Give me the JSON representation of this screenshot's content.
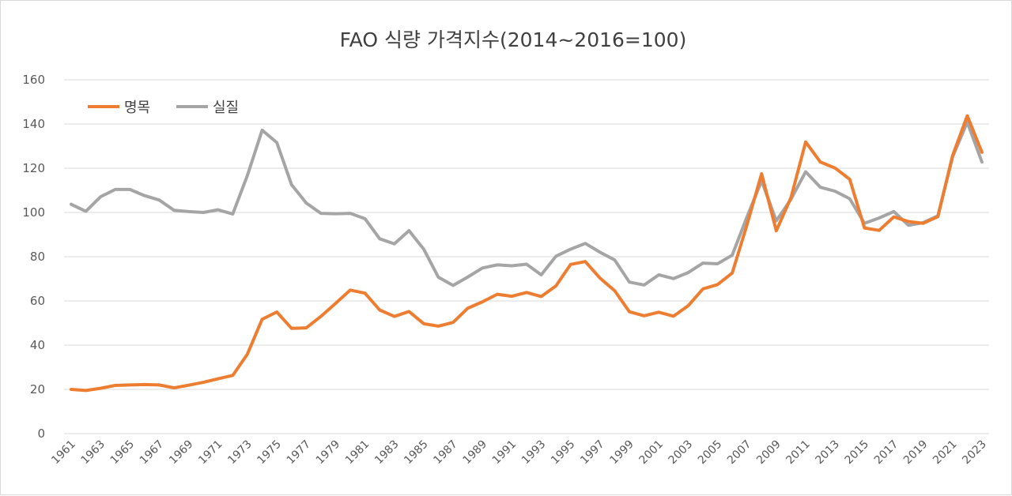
{
  "chart_data": {
    "type": "line",
    "title": "FAO 식량 가격지수(2014~2016=100)",
    "xlabel": "",
    "ylabel": "",
    "ylim": [
      0,
      160
    ],
    "yticks": [
      0,
      20,
      40,
      60,
      80,
      100,
      120,
      140,
      160
    ],
    "grid": true,
    "legend": "top-left",
    "x": [
      1961,
      1962,
      1963,
      1964,
      1965,
      1966,
      1967,
      1968,
      1969,
      1970,
      1971,
      1972,
      1973,
      1974,
      1975,
      1976,
      1977,
      1978,
      1979,
      1980,
      1981,
      1982,
      1983,
      1984,
      1985,
      1986,
      1987,
      1988,
      1989,
      1990,
      1991,
      1992,
      1993,
      1994,
      1995,
      1996,
      1997,
      1998,
      1999,
      2000,
      2001,
      2002,
      2003,
      2004,
      2005,
      2006,
      2007,
      2008,
      2009,
      2010,
      2011,
      2012,
      2013,
      2014,
      2015,
      2016,
      2017,
      2018,
      2019,
      2020,
      2021,
      2022,
      2023
    ],
    "xticks": [
      "1961",
      "1963",
      "1965",
      "1967",
      "1969",
      "1971",
      "1973",
      "1975",
      "1977",
      "1979",
      "1981",
      "1983",
      "1985",
      "1987",
      "1989",
      "1991",
      "1993",
      "1995",
      "1997",
      "1999",
      "2001",
      "2003",
      "2005",
      "2007",
      "2009",
      "2011",
      "2013",
      "2015",
      "2017",
      "2019",
      "2021",
      "2023"
    ],
    "series": [
      {
        "name": "명목",
        "color": "#ED7D31",
        "values": [
          20,
          19.5,
          20.5,
          21.8,
          22,
          22.2,
          22,
          20.7,
          21.9,
          23.2,
          24.8,
          26.3,
          36,
          51.7,
          55,
          47.6,
          47.8,
          53,
          58.9,
          64.9,
          63.5,
          55.9,
          53,
          55.2,
          49.7,
          48.6,
          50.3,
          56.7,
          59.6,
          63,
          62.1,
          63.8,
          62,
          66.8,
          76.5,
          77.8,
          70.3,
          64.6,
          55.1,
          53.3,
          54.9,
          53.1,
          57.8,
          65.4,
          67.4,
          72.6,
          94.3,
          117.5,
          91.7,
          106.7,
          131.9,
          122.8,
          120.1,
          115,
          93,
          91.9,
          98,
          95.9,
          95.1,
          98.1,
          125.7,
          143.7,
          127.2
        ]
      },
      {
        "name": "실질",
        "color": "#A5A5A5",
        "values": [
          103.7,
          100.5,
          107.1,
          110.4,
          110.4,
          107.6,
          105.6,
          101,
          100.4,
          100,
          101.2,
          99.3,
          116.8,
          137.2,
          131.6,
          112.6,
          104.3,
          99.6,
          99.4,
          99.6,
          97.2,
          88.1,
          85.8,
          91.8,
          83.4,
          70.7,
          67,
          70.8,
          74.9,
          76.3,
          75.9,
          76.6,
          71.8,
          80.2,
          83.4,
          86,
          82,
          78.5,
          68.5,
          67.2,
          71.8,
          70.1,
          72.8,
          77.1,
          76.8,
          80.7,
          97.9,
          114.3,
          96.2,
          106,
          118.4,
          111.4,
          109.6,
          106.2,
          95.1,
          97.5,
          100.4,
          94.2,
          95.4,
          98.5,
          125.1,
          140.8,
          122.8
        ]
      }
    ]
  }
}
